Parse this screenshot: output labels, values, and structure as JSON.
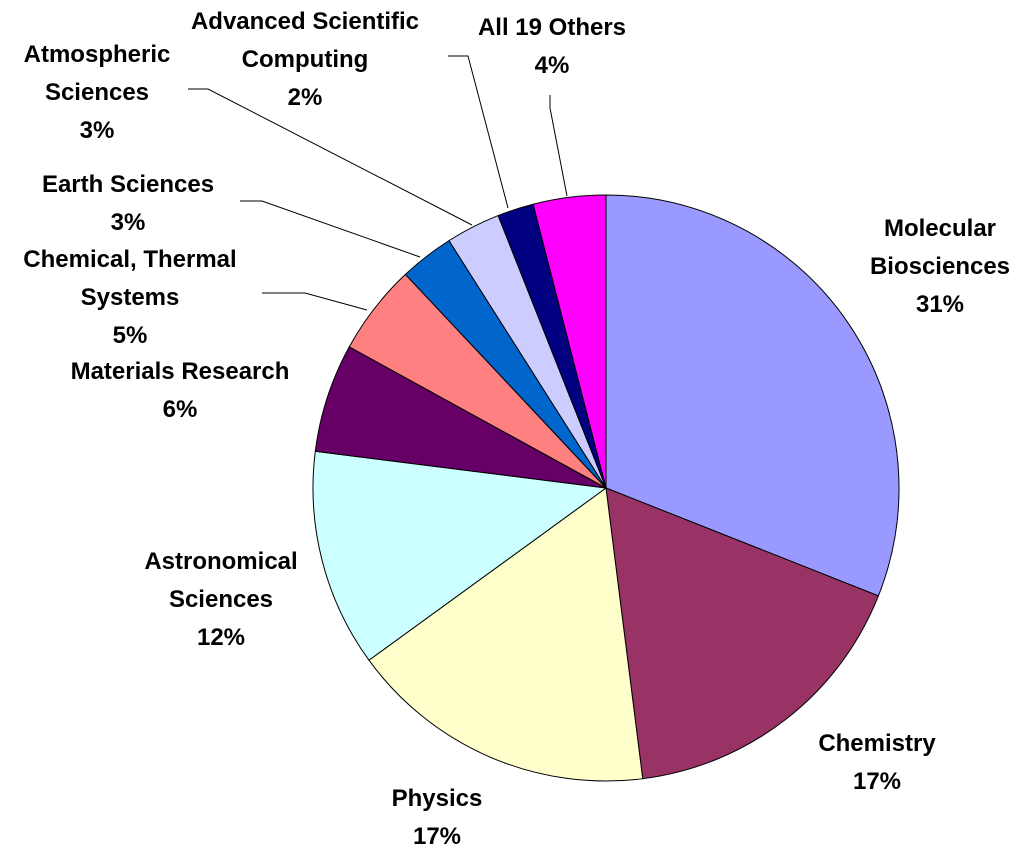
{
  "chart_data": {
    "type": "pie",
    "title": "",
    "slices": [
      {
        "label_lines": [
          "Molecular",
          "Biosciences"
        ],
        "value": 31,
        "value_label": "31%",
        "color": "#9999ff"
      },
      {
        "label_lines": [
          "Chemistry"
        ],
        "value": 17,
        "value_label": "17%",
        "color": "#993366"
      },
      {
        "label_lines": [
          "Physics"
        ],
        "value": 17,
        "value_label": "17%",
        "color": "#ffffcc"
      },
      {
        "label_lines": [
          "Astronomical",
          "Sciences"
        ],
        "value": 12,
        "value_label": "12%",
        "color": "#ccffff"
      },
      {
        "label_lines": [
          "Materials Research"
        ],
        "value": 6,
        "value_label": "6%",
        "color": "#660066"
      },
      {
        "label_lines": [
          "Chemical, Thermal",
          "Systems"
        ],
        "value": 5,
        "value_label": "5%",
        "color": "#ff8080"
      },
      {
        "label_lines": [
          "Earth Sciences"
        ],
        "value": 3,
        "value_label": "3%",
        "color": "#0066cc"
      },
      {
        "label_lines": [
          "Atmospheric",
          "Sciences"
        ],
        "value": 3,
        "value_label": "3%",
        "color": "#ccccff"
      },
      {
        "label_lines": [
          "Advanced Scientific",
          "Computing"
        ],
        "value": 2,
        "value_label": "2%",
        "color": "#000080"
      },
      {
        "label_lines": [
          "All 19 Others"
        ],
        "value": 4,
        "value_label": "4%",
        "color": "#ff00ff"
      }
    ]
  }
}
